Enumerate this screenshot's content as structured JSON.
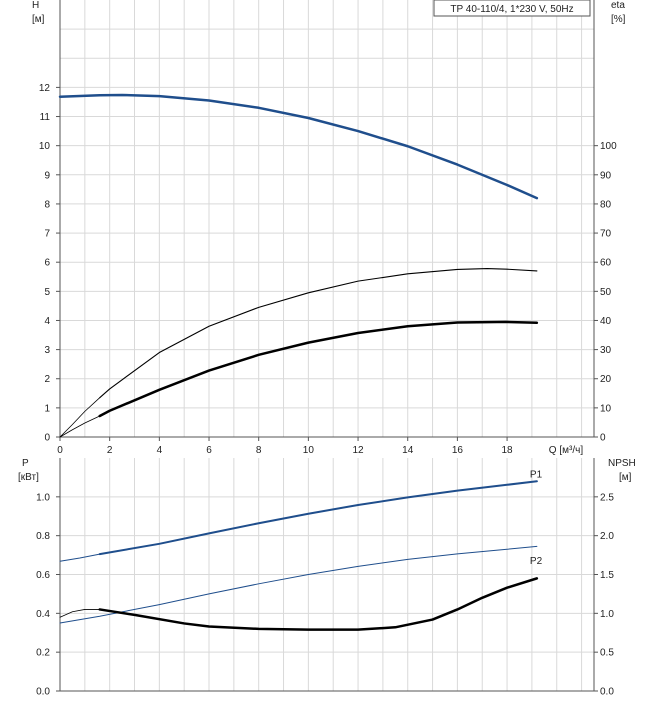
{
  "chart_data": [
    {
      "type": "line",
      "title": "TP 40-110/4, 1*230 V, 50Hz",
      "xlabel": "Q [м³/ч]",
      "x_ticks": [
        0,
        2,
        4,
        6,
        8,
        10,
        12,
        14,
        16,
        18
      ],
      "xlim": [
        0,
        21.5
      ],
      "left_axis": {
        "label_line1": "H",
        "label_line2": "[м]",
        "ylim": [
          0,
          15
        ],
        "ticks": [
          0,
          1,
          2,
          3,
          4,
          5,
          6,
          7,
          8,
          9,
          10,
          11,
          12
        ]
      },
      "right_axis": {
        "label_line1": "eta",
        "label_line2": "[%]",
        "ylim": [
          0,
          150
        ],
        "ticks": [
          0,
          10,
          20,
          30,
          40,
          50,
          60,
          70,
          80,
          90,
          100
        ]
      },
      "grid": true,
      "series": [
        {
          "axis": "left",
          "color": "#1f4e8c",
          "width": 2.5,
          "x": [
            0,
            1.6,
            2.5,
            4,
            6,
            8,
            10,
            12,
            14,
            16,
            18,
            19.2
          ],
          "y": [
            11.68,
            11.73,
            11.74,
            11.7,
            11.55,
            11.3,
            10.95,
            10.5,
            9.98,
            9.35,
            8.65,
            8.2
          ]
        },
        {
          "axis": "left",
          "color": "#000000",
          "width": 2.5,
          "x": [
            1.6,
            2,
            4,
            6,
            8,
            10,
            12,
            14,
            16,
            18,
            19.2
          ],
          "y": [
            0.72,
            0.9,
            1.62,
            2.28,
            2.82,
            3.24,
            3.57,
            3.8,
            3.93,
            3.95,
            3.92
          ]
        },
        {
          "axis": "left",
          "color": "#000000",
          "width": 0.8,
          "x": [
            0,
            0.5,
            1,
            1.6
          ],
          "y": [
            0,
            0.25,
            0.48,
            0.72
          ]
        },
        {
          "axis": "right",
          "color": "#000000",
          "width": 1.1,
          "x": [
            1.6,
            2,
            4,
            6,
            8,
            10,
            12,
            14,
            16,
            17.2,
            18,
            19.2
          ],
          "y": [
            13.5,
            16.5,
            29,
            38,
            44.5,
            49.5,
            53.5,
            56,
            57.5,
            57.8,
            57.6,
            57
          ]
        },
        {
          "axis": "right",
          "color": "#000000",
          "width": 0.8,
          "x": [
            0,
            0.5,
            1,
            1.6
          ],
          "y": [
            0,
            4.3,
            8.8,
            13.5
          ]
        }
      ]
    },
    {
      "type": "line",
      "xlim": [
        0,
        21.5
      ],
      "left_axis": {
        "label_line1": "P",
        "label_line2": "[кВт]",
        "ylim": [
          0,
          1.2
        ],
        "ticks": [
          0.0,
          0.2,
          0.4,
          0.6,
          0.8,
          1.0
        ],
        "tick_labels": [
          "0.0",
          "0.2",
          "0.4",
          "0.6",
          "0.8",
          "1.0"
        ]
      },
      "right_axis": {
        "label_line1": "NPSH",
        "label_line2": "[м]",
        "ylim": [
          0,
          3.0
        ],
        "ticks": [
          0.0,
          0.5,
          1.0,
          1.5,
          2.0,
          2.5
        ],
        "tick_labels": [
          "0.0",
          "0.5",
          "1.0",
          "1.5",
          "2.0",
          "2.5"
        ]
      },
      "grid": true,
      "series": [
        {
          "name": "P1",
          "axis": "left",
          "color": "#1f4e8c",
          "width": 2,
          "x": [
            1.6,
            4,
            6,
            8,
            10,
            12,
            14,
            16,
            18,
            19.2
          ],
          "y": [
            0.705,
            0.758,
            0.812,
            0.864,
            0.913,
            0.958,
            0.997,
            1.032,
            1.062,
            1.08
          ]
        },
        {
          "axis": "left",
          "color": "#1f4e8c",
          "width": 1,
          "x": [
            0,
            0.8,
            1.6
          ],
          "y": [
            0.668,
            0.685,
            0.705
          ]
        },
        {
          "name": "P2",
          "axis": "left",
          "color": "#1f4e8c",
          "width": 1,
          "x": [
            0,
            1.6,
            4,
            6,
            8,
            10,
            12,
            14,
            16,
            18,
            19.2
          ],
          "y": [
            0.35,
            0.385,
            0.445,
            0.5,
            0.552,
            0.6,
            0.642,
            0.678,
            0.706,
            0.73,
            0.745
          ]
        },
        {
          "axis": "right",
          "color": "#000000",
          "width": 2.5,
          "x": [
            1.6,
            3,
            5,
            6,
            8,
            10,
            12,
            13.5,
            15,
            16,
            17,
            18,
            19.2
          ],
          "y": [
            1.05,
            0.98,
            0.87,
            0.83,
            0.8,
            0.79,
            0.79,
            0.82,
            0.92,
            1.05,
            1.2,
            1.33,
            1.45
          ]
        },
        {
          "axis": "right",
          "color": "#000000",
          "width": 0.8,
          "x": [
            0,
            0.5,
            1,
            1.6
          ],
          "y": [
            0.95,
            1.02,
            1.05,
            1.05
          ]
        }
      ],
      "series_labels": [
        {
          "text": "P1",
          "x": 19.0,
          "y": 1.115,
          "color": "#1f4e8c"
        },
        {
          "text": "P2",
          "x": 19.0,
          "y": 0.67,
          "color": "#1f4e8c"
        }
      ]
    }
  ]
}
